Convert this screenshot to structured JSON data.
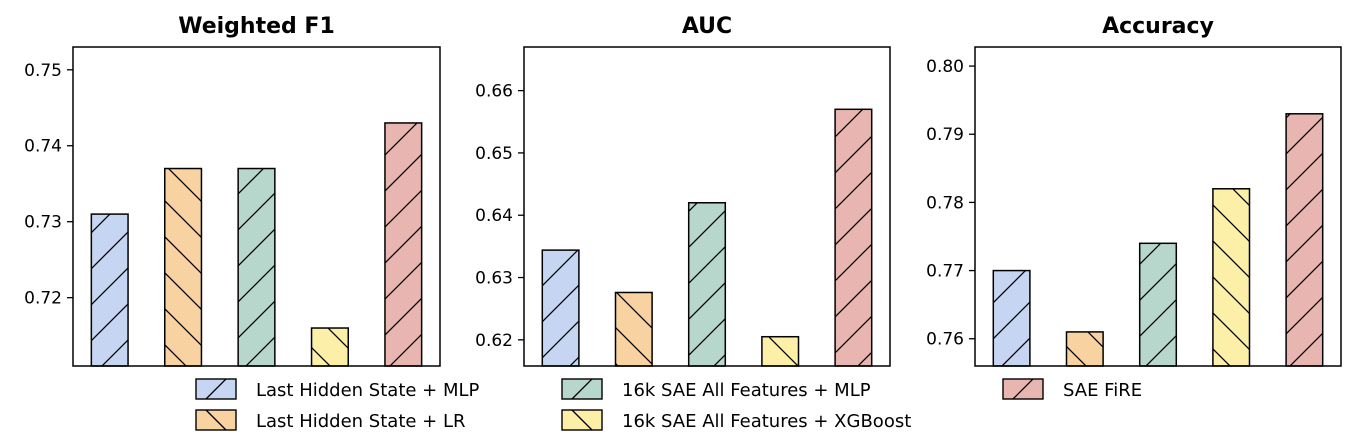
{
  "chart_data": [
    {
      "type": "bar",
      "title": "Weighted F1",
      "categories": [
        "Last Hidden State + MLP",
        "Last Hidden State + LR",
        "16k SAE All Features + MLP",
        "16k SAE All Features + XGBoost",
        "SAE FiRE"
      ],
      "values": [
        0.731,
        0.737,
        0.737,
        0.716,
        0.743
      ],
      "ylim": [
        0.711,
        0.753
      ],
      "yticks": [
        "0.720",
        "0.730",
        "0.740",
        "0.750"
      ],
      "ytick_labels": [
        "0.72",
        "0.73",
        "0.74",
        "0.75"
      ]
    },
    {
      "type": "bar",
      "title": "AUC",
      "categories": [
        "Last Hidden State + MLP",
        "Last Hidden State + LR",
        "16k SAE All Features + MLP",
        "16k SAE All Features + XGBoost",
        "SAE FiRE"
      ],
      "values": [
        0.6344,
        0.6276,
        0.642,
        0.6205,
        0.657
      ],
      "ylim": [
        0.6158,
        0.667
      ],
      "yticks": [
        "0.620",
        "0.630",
        "0.640",
        "0.650",
        "0.660"
      ],
      "ytick_labels": [
        "0.62",
        "0.63",
        "0.64",
        "0.65",
        "0.66"
      ]
    },
    {
      "type": "bar",
      "title": "Accuracy",
      "categories": [
        "Last Hidden State + MLP",
        "Last Hidden State + LR",
        "16k SAE All Features + MLP",
        "16k SAE All Features + XGBoost",
        "SAE FiRE"
      ],
      "values": [
        0.77,
        0.761,
        0.774,
        0.782,
        0.793
      ],
      "ylim": [
        0.756,
        0.8028
      ],
      "yticks": [
        "0.760",
        "0.770",
        "0.780",
        "0.790",
        "0.800"
      ],
      "ytick_labels": [
        "0.76",
        "0.77",
        "0.78",
        "0.79",
        "0.80"
      ]
    }
  ],
  "series_style": [
    {
      "name": "Last Hidden State + MLP",
      "color": "#c6d6f2",
      "hatch": "forward"
    },
    {
      "name": "Last Hidden State + LR",
      "color": "#f8d3a1",
      "hatch": "back"
    },
    {
      "name": "16k SAE All Features + MLP",
      "color": "#b7d7cd",
      "hatch": "forward"
    },
    {
      "name": "16k SAE All Features + XGBoost",
      "color": "#fcf0a8",
      "hatch": "back"
    },
    {
      "name": "SAE FiRE",
      "color": "#e8b5b0",
      "hatch": "forward"
    }
  ],
  "legend": {
    "placement": "bottom",
    "entries": [
      "Last Hidden State + MLP",
      "Last Hidden State + LR",
      "16k SAE All Features + MLP",
      "16k SAE All Features + XGBoost",
      "SAE FiRE"
    ]
  }
}
